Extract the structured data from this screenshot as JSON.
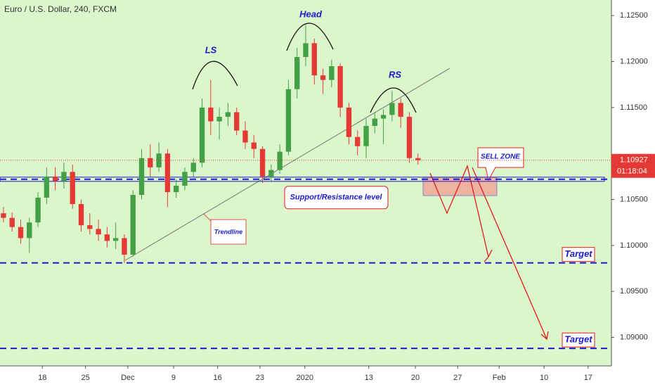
{
  "chart_data": {
    "type": "candlestick",
    "title": "Euro / U.S. Dollar, 240, FXCM",
    "x": [
      -4.5,
      -3.5,
      -2.5,
      -1.5,
      -0.5,
      0.5,
      1.5,
      2.5,
      3.5,
      4.5,
      5.5,
      6.5,
      7.5,
      8.5,
      9.5,
      10.5,
      11.5,
      12.5,
      13.5,
      14.5,
      15.5,
      16.5,
      17.5,
      18.5,
      19.5,
      20.5,
      21.5,
      22.5,
      23.5,
      24.5,
      25.5,
      26.5,
      27.5,
      28.5,
      29.5,
      30.5,
      31.5,
      32.5,
      33.5,
      34.5,
      35.5,
      36.5,
      37.5,
      38.5,
      39.5,
      40.5,
      41.5,
      42.5,
      43.5
    ],
    "open": [
      1.1035,
      1.103,
      1.102,
      1.1008,
      1.1025,
      1.1052,
      1.1075,
      1.107,
      1.108,
      1.1045,
      1.1022,
      1.1018,
      1.1012,
      1.1005,
      1.1008,
      1.099,
      1.1055,
      1.1095,
      1.1085,
      1.11,
      1.1058,
      1.1065,
      1.108,
      1.109,
      1.115,
      1.1135,
      1.114,
      1.1145,
      1.1125,
      1.1112,
      1.1105,
      1.1075,
      1.1082,
      1.1102,
      1.117,
      1.1205,
      1.122,
      1.1185,
      1.118,
      1.1195,
      1.115,
      1.1118,
      1.1108,
      1.113,
      1.1138,
      1.1142,
      1.1155,
      1.114,
      1.1095
    ],
    "high": [
      1.1042,
      1.1036,
      1.1028,
      1.103,
      1.1058,
      1.1085,
      1.1085,
      1.109,
      1.1088,
      1.105,
      1.1035,
      1.1028,
      1.102,
      1.1025,
      1.1012,
      1.106,
      1.1105,
      1.111,
      1.1112,
      1.1105,
      1.1072,
      1.1085,
      1.1095,
      1.116,
      1.118,
      1.115,
      1.1155,
      1.115,
      1.1135,
      1.112,
      1.1108,
      1.1088,
      1.111,
      1.118,
      1.1215,
      1.124,
      1.1225,
      1.1192,
      1.1202,
      1.1198,
      1.1155,
      1.1125,
      1.1138,
      1.1145,
      1.1148,
      1.1168,
      1.116,
      1.1145,
      1.11
    ],
    "low": [
      1.1025,
      1.1015,
      1.1002,
      1.0992,
      1.102,
      1.1045,
      1.106,
      1.1062,
      1.104,
      1.1015,
      1.1012,
      1.1005,
      1.0998,
      1.0996,
      1.0981,
      1.0988,
      1.105,
      1.1075,
      1.108,
      1.1042,
      1.1052,
      1.106,
      1.1075,
      1.1085,
      1.112,
      1.1115,
      1.113,
      1.112,
      1.1105,
      1.1095,
      1.1068,
      1.107,
      1.1078,
      1.1098,
      1.116,
      1.1195,
      1.1175,
      1.1165,
      1.1172,
      1.114,
      1.111,
      1.1098,
      1.1095,
      1.1122,
      1.111,
      1.1135,
      1.1128,
      1.109,
      1.1088
    ],
    "close": [
      1.103,
      1.102,
      1.1008,
      1.1025,
      1.1052,
      1.1075,
      1.107,
      1.108,
      1.1045,
      1.1022,
      1.1018,
      1.1012,
      1.1005,
      1.1008,
      1.099,
      1.1055,
      1.1095,
      1.1085,
      1.11,
      1.1058,
      1.1065,
      1.108,
      1.109,
      1.115,
      1.1135,
      1.114,
      1.1145,
      1.1125,
      1.1112,
      1.1105,
      1.1075,
      1.1082,
      1.1102,
      1.117,
      1.1205,
      1.122,
      1.1185,
      1.118,
      1.1195,
      1.115,
      1.1118,
      1.1108,
      1.113,
      1.1138,
      1.1142,
      1.1155,
      1.114,
      1.1095,
      1.10927
    ],
    "up_color": "#43a047",
    "down_color": "#e53935",
    "xlim": [
      -4.9,
      65.9
    ],
    "xticks": [
      {
        "value": 0,
        "label": "18"
      },
      {
        "value": 5,
        "label": "25"
      },
      {
        "value": 9.9,
        "label": "Dec"
      },
      {
        "value": 15.2,
        "label": "9"
      },
      {
        "value": 20.3,
        "label": "16"
      },
      {
        "value": 25.2,
        "label": "23"
      },
      {
        "value": 30.4,
        "label": "2020"
      },
      {
        "value": 37.8,
        "label": "13"
      },
      {
        "value": 43.2,
        "label": "20"
      },
      {
        "value": 48.1,
        "label": "27"
      },
      {
        "value": 52.9,
        "label": "Feb"
      },
      {
        "value": 58.1,
        "label": "10"
      },
      {
        "value": 63.2,
        "label": "17"
      }
    ],
    "ylim": [
      1.0869,
      1.1267
    ],
    "yticks": [
      {
        "value": 1.09,
        "label": "1.09000"
      },
      {
        "value": 1.095,
        "label": "1.09500"
      },
      {
        "value": 1.1,
        "label": "1.10000"
      },
      {
        "value": 1.105,
        "label": "1.10500"
      },
      {
        "value": 1.115,
        "label": "1.11500"
      },
      {
        "value": 1.12,
        "label": "1.12000"
      },
      {
        "value": 1.125,
        "label": "1.12500"
      }
    ],
    "last_price": 1.10927,
    "countdown": "01:18:04",
    "support": {
      "text": "Support/Resistance level",
      "value": 1.1072
    },
    "targets": [
      {
        "text": "Target",
        "value": 1.0981
      },
      {
        "text": "Target",
        "value": 1.0888
      }
    ],
    "labels": {
      "ls": "LS",
      "head": "Head",
      "rs": "RS",
      "trendline": "Trendline",
      "sell_zone": "SELL ZONE"
    }
  }
}
